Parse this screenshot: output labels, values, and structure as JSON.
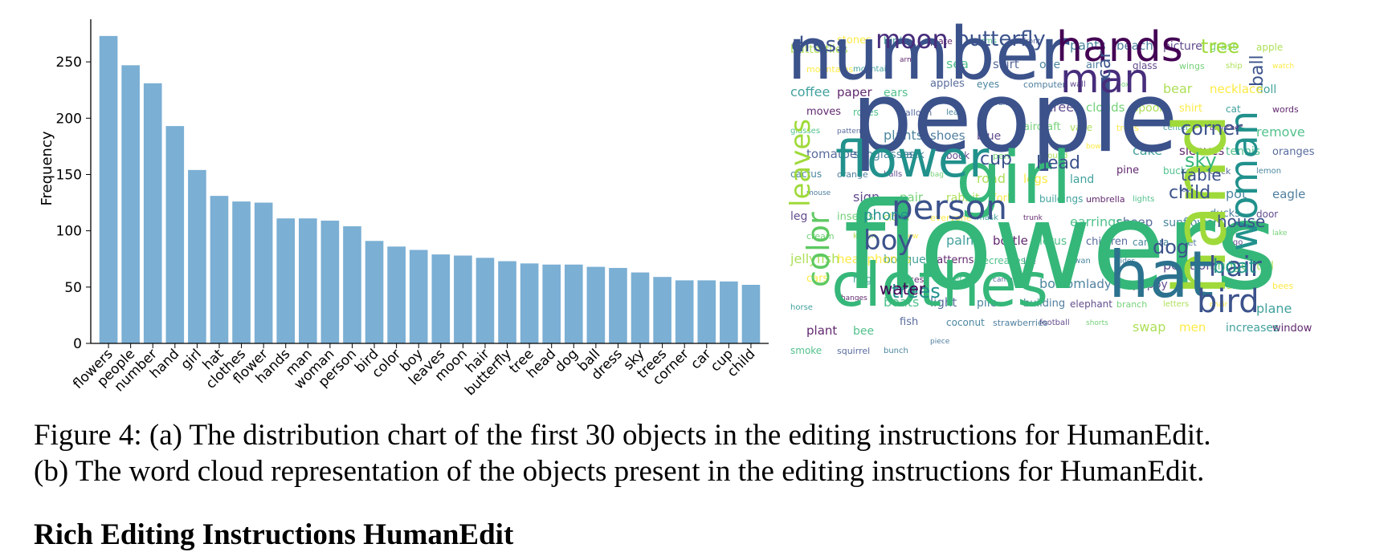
{
  "chart_data": {
    "type": "bar",
    "categories": [
      "flowers",
      "people",
      "number",
      "hand",
      "girl",
      "hat",
      "clothes",
      "flower",
      "hands",
      "man",
      "woman",
      "person",
      "bird",
      "color",
      "boy",
      "leaves",
      "moon",
      "hair",
      "butterfly",
      "tree",
      "head",
      "dog",
      "ball",
      "dress",
      "sky",
      "trees",
      "corner",
      "car",
      "cup",
      "child"
    ],
    "values": [
      273,
      247,
      231,
      193,
      154,
      131,
      126,
      125,
      111,
      111,
      109,
      104,
      91,
      86,
      83,
      79,
      78,
      76,
      73,
      71,
      70,
      70,
      68,
      67,
      63,
      59,
      56,
      56,
      55,
      52
    ],
    "ylabel": "Frequency",
    "xlabel": "",
    "yticks": [
      0,
      50,
      100,
      150,
      200,
      250
    ],
    "ylim": [
      0,
      285
    ],
    "bar_color": "#7bafd4",
    "grid": false
  },
  "word_cloud": {
    "words": [
      "flowers",
      "people",
      "number",
      "hand",
      "girl",
      "hat",
      "clothes",
      "flower",
      "hands",
      "man",
      "woman",
      "person",
      "bird",
      "color",
      "boy",
      "leaves",
      "moon",
      "hair",
      "butterfly",
      "tree",
      "head",
      "dog",
      "ball",
      "dress",
      "sky",
      "trees",
      "corner",
      "car",
      "cup",
      "child",
      "water",
      "phone",
      "table",
      "house",
      "boat",
      "butterflies",
      "stones",
      "birds",
      "plate",
      "arms",
      "front",
      "pants",
      "beach",
      "picture",
      "grass",
      "apple",
      "mountains",
      "mountain",
      "arm",
      "sea",
      "skirt",
      "one",
      "air",
      "glass",
      "wings",
      "ship",
      "watch",
      "coffee",
      "paper",
      "ears",
      "apples",
      "eyes",
      "computer",
      "wall",
      "box",
      "bear",
      "necklace",
      "doll",
      "moves",
      "roses",
      "balloon",
      "leaf",
      "fruit",
      "screen",
      "clouds",
      "spoon",
      "shirt",
      "cat",
      "words",
      "glasses",
      "pattern",
      "plants",
      "shoes",
      "blue",
      "aircraft",
      "vase",
      "trees",
      "center",
      "branches",
      "remove",
      "tomatoes",
      "sunglasses",
      "back",
      "book",
      "pen",
      "ground",
      "bowl",
      "cake",
      "sleeves",
      "tennis",
      "oranges",
      "cactus",
      "orange",
      "balls",
      "bag",
      "road",
      "legs",
      "land",
      "pine",
      "bucket",
      "duck",
      "lemon",
      "mouse",
      "sign",
      "pair",
      "rabbit",
      "fork",
      "buildings",
      "umbrella",
      "lights",
      "toy",
      "pot",
      "eagle",
      "leg",
      "insects",
      "cloud",
      "everyone",
      "mask",
      "trunk",
      "earrings",
      "sheep",
      "sunflowers",
      "ducks",
      "door",
      "cream",
      "kitten",
      "snow",
      "palm",
      "bottle",
      "lotus",
      "children",
      "camera",
      "feet",
      "logo",
      "lake",
      "jellyfish",
      "headphones",
      "bouquet",
      "patterns",
      "decreases",
      "ice",
      "swan",
      "sides",
      "position",
      "bridge",
      "tail",
      "cars",
      "ring",
      "slices",
      "reef",
      "camel",
      "bottom",
      "lady",
      "puppy",
      "turn",
      "deer",
      "bees",
      "horse",
      "changes",
      "boats",
      "light",
      "pile",
      "building",
      "elephant",
      "branch",
      "letters",
      "chair",
      "plane",
      "plant",
      "bee",
      "fish",
      "coconut",
      "strawberries",
      "football",
      "shorts",
      "swap",
      "men",
      "increases",
      "window",
      "smoke",
      "squirrel",
      "bunch",
      "piece"
    ]
  },
  "caption": {
    "line1": "Figure 4:  (a) The distribution chart of the first 30 objects in the editing instructions for HumanEdit.",
    "line2": "(b) The word cloud representation of the objects present in the editing instructions for HumanEdit."
  },
  "next_paragraph": "Rich Editing Instructions HumanEdit"
}
